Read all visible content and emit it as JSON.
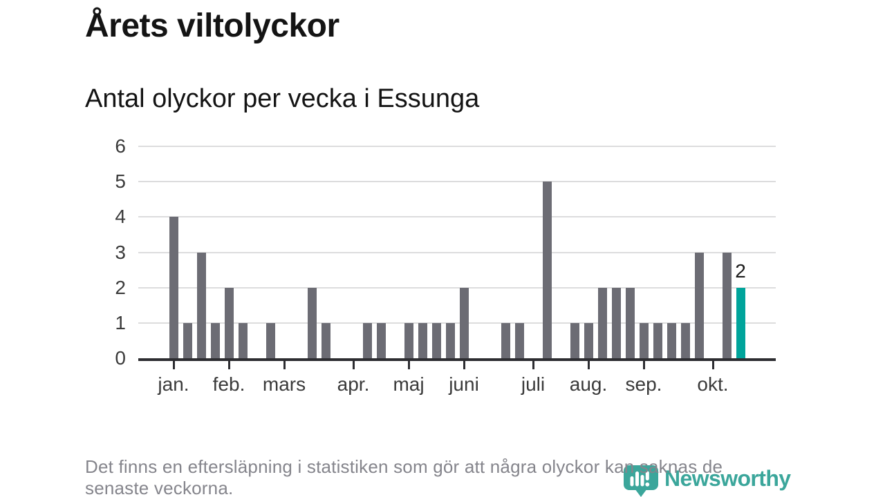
{
  "header": {
    "title": "Årets viltolyckor",
    "subtitle": "Antal olyckor per vecka i Essunga"
  },
  "footer": {
    "note_line1": "Det finns en eftersläpning i statistiken som gör att några olyckor kan saknas de",
    "note_line2": "senaste veckorna.",
    "brand": "Newsworthy"
  },
  "colors": {
    "bar": "#6c6c74",
    "highlight_bar": "#00a49b",
    "logo": "#3ba69b",
    "grid": "#dcdcdd",
    "axis": "#2d2d31",
    "labels": "#3a3a3a",
    "title": "#141414",
    "footnote": "#85858c",
    "value_label": "#1a1a1a"
  },
  "chart_data": {
    "type": "bar",
    "title": "Årets viltolyckor",
    "subtitle": "Antal olyckor per vecka i Essunga",
    "xlabel": "",
    "ylabel": "",
    "x_unit": "vecka",
    "ylim": [
      0,
      6
    ],
    "yticks": [
      0,
      1,
      2,
      3,
      4,
      5,
      6
    ],
    "grid": true,
    "legend": "none",
    "values": [
      4,
      1,
      3,
      1,
      2,
      1,
      0,
      1,
      0,
      0,
      2,
      1,
      0,
      0,
      1,
      1,
      0,
      1,
      1,
      1,
      1,
      2,
      0,
      0,
      1,
      1,
      0,
      5,
      0,
      1,
      1,
      2,
      2,
      2,
      1,
      1,
      1,
      1,
      3,
      0,
      3,
      2
    ],
    "highlight_last_bar": true,
    "highlight_value_label": "2",
    "month_ticks": [
      {
        "label": "jan.",
        "week_index": 0
      },
      {
        "label": "feb.",
        "week_index": 4
      },
      {
        "label": "mars",
        "week_index": 8
      },
      {
        "label": "apr.",
        "week_index": 13
      },
      {
        "label": "maj",
        "week_index": 17
      },
      {
        "label": "juni",
        "week_index": 21
      },
      {
        "label": "juli",
        "week_index": 26
      },
      {
        "label": "aug.",
        "week_index": 30
      },
      {
        "label": "sep.",
        "week_index": 34
      },
      {
        "label": "okt.",
        "week_index": 39
      }
    ]
  }
}
